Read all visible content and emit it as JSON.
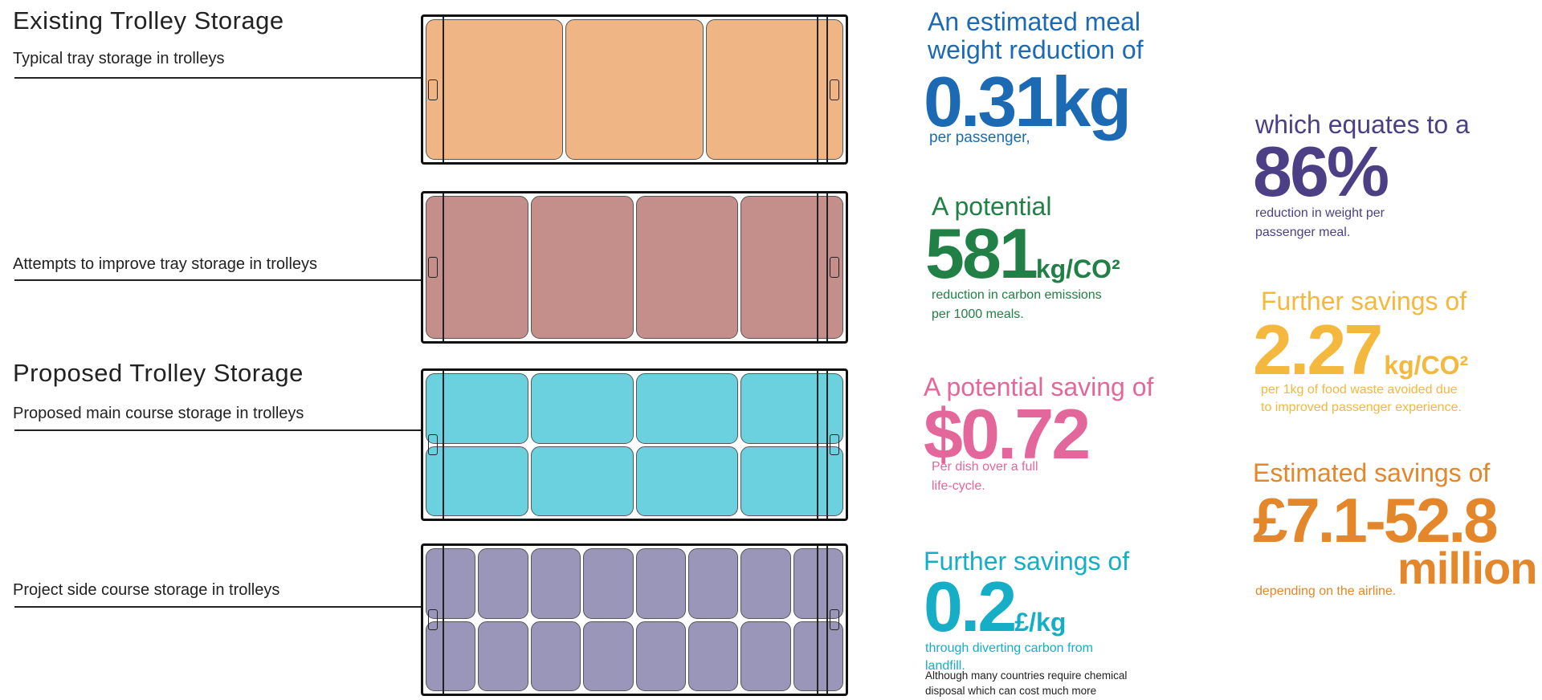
{
  "left": {
    "existing_heading": "Existing Trolley Storage",
    "typical_label": "Typical tray storage in trolleys",
    "attempts_label": "Attempts to improve tray storage in trolleys",
    "proposed_heading": "Proposed Trolley Storage",
    "main_course_label": "Proposed main course storage in trolleys",
    "side_course_label": "Project side course storage in trolleys"
  },
  "trolleys": [
    {
      "name": "typical",
      "rows": 1,
      "cols": 3,
      "fill": "#efb584"
    },
    {
      "name": "attempts",
      "rows": 1,
      "cols": 4,
      "fill": "#c48f8b"
    },
    {
      "name": "main-course",
      "rows": 2,
      "cols": 4,
      "fill": "#6bd1df"
    },
    {
      "name": "side-course",
      "rows": 2,
      "cols": 8,
      "fill": "#9a96b9"
    }
  ],
  "stats": {
    "weight": {
      "lead": "An estimated meal weight reduction of",
      "value": "0.31kg",
      "sub": "per passenger,",
      "color": "#1c6ab3"
    },
    "carbon": {
      "lead": "A potential",
      "value": "581",
      "unit": "kg/CO²",
      "sub1": "reduction in carbon emissions",
      "sub2": "per 1000 meals.",
      "color": "#218046"
    },
    "dish": {
      "lead": "A potential saving of",
      "value": "$0.72",
      "sub1": "Per dish over a full",
      "sub2": "life-cycle.",
      "color": "#e3679a"
    },
    "landfill": {
      "lead": "Further savings of",
      "value": "0.2",
      "unit": "£/kg",
      "sub1": "through diverting carbon from",
      "sub2": "landfill.",
      "note1": "Although many countries require chemical",
      "note2": "disposal which can cost much more",
      "color": "#16aec6",
      "note_color": "#222222"
    },
    "percent": {
      "lead": "which equates to a",
      "value": "86%",
      "sub1": "reduction in weight per",
      "sub2": "passenger meal.",
      "color": "#4c3f86"
    },
    "waste": {
      "lead": "Further savings of",
      "value": "2.27",
      "unit": "kg/CO²",
      "sub1": "per 1kg of food waste avoided due",
      "sub2": "to improved passenger experience.",
      "color": "#f3b83d"
    },
    "airline": {
      "lead": "Estimated savings of",
      "value": "£7.1-52.8",
      "value2": "million",
      "sub": "depending on the airline.",
      "color": "#e4862a"
    }
  }
}
